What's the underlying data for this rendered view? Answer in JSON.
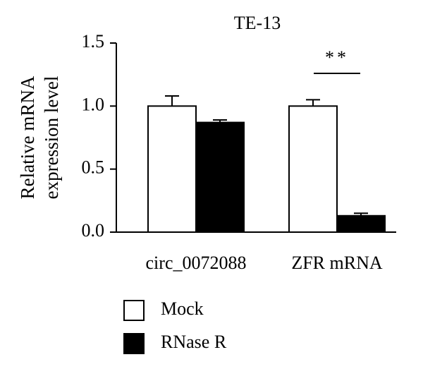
{
  "chart_data": {
    "type": "bar",
    "title": "TE-13",
    "y_label": [
      "Relative mRNA",
      "expression level"
    ],
    "categories": [
      "circ_0072088",
      "ZFR mRNA"
    ],
    "series": [
      {
        "name": "Mock",
        "color": "#ffffff",
        "values": [
          1.0,
          1.0
        ],
        "errors": [
          0.08,
          0.05
        ]
      },
      {
        "name": "RNase R",
        "color": "#000000",
        "values": [
          0.87,
          0.13
        ],
        "errors": [
          0.02,
          0.02
        ]
      }
    ],
    "ylim": [
      0,
      1.5
    ],
    "yticks": [
      {
        "value": 0,
        "label": "0.0"
      },
      0.5,
      {
        "value": 1,
        "label": "1.0"
      },
      1.5
    ],
    "annotations": [
      {
        "text": "**",
        "category": 1
      }
    ]
  }
}
